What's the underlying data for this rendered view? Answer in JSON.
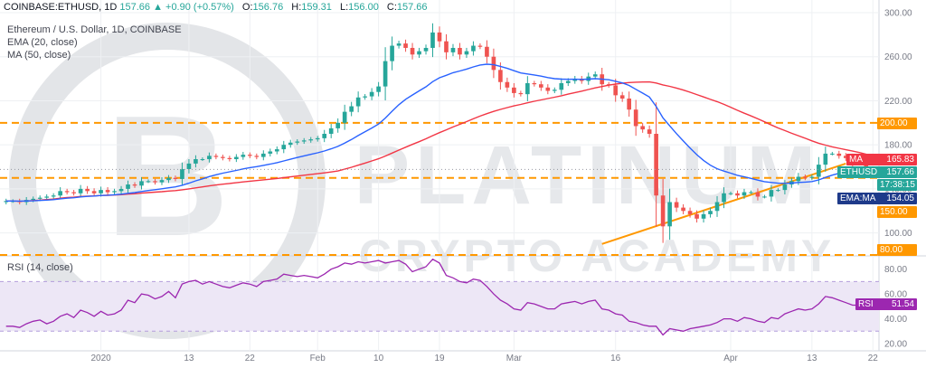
{
  "header": {
    "symbol": "COINBASE:ETHUSD, 1D",
    "o_label": "O:",
    "o": "156.76",
    "h_label": "H:",
    "h": "159.31",
    "l_label": "L:",
    "l": "156.00",
    "c_label": "C:",
    "c": "157.66",
    "change": "157.66 ▲ +0.90 (+0.57%)",
    "title": "Ethereum / U.S. Dollar, 1D, COINBASE",
    "ema_label": "EMA (20, close)",
    "ma_label": "MA (50, close)",
    "rsi_label": "RSI (14, close)"
  },
  "watermark": {
    "line1": "PLATINUM",
    "line2": "CRYPTO ACADEMY",
    "logo_char": "B"
  },
  "badges": {
    "ma_name": "MA",
    "ma_value": "165.83",
    "eth_name": "ETHUSD",
    "eth_value": "157.66",
    "timer": "17:38:15",
    "emama_name": "EMA:MA",
    "emama_value": "154.05",
    "level_200": "200.00",
    "level_150": "150.00",
    "level_80": "80.00",
    "rsi_name": "RSI",
    "rsi_value": "51.54"
  },
  "colors": {
    "up": "#26a69a",
    "down": "#ef5350",
    "ema": "#2962ff",
    "ma": "#f23645",
    "support": "#ff9800",
    "rsi": "#9c27b0",
    "rsi_band": "#ede7f6",
    "grid": "#eef0f3",
    "axis_text": "#787b86"
  },
  "chart_data": {
    "type": "candlestick",
    "title": "Ethereum / U.S. Dollar, 1D, COINBASE",
    "price_axis": {
      "range": [
        80,
        300
      ],
      "ticks": [
        "300.00",
        "260.00",
        "220.00",
        "180.00",
        "140.00",
        "100.00"
      ]
    },
    "x_axis": {
      "ticks": [
        {
          "label": "2020",
          "index": 14
        },
        {
          "label": "13",
          "index": 27
        },
        {
          "label": "22",
          "index": 36
        },
        {
          "label": "Feb",
          "index": 46
        },
        {
          "label": "10",
          "index": 55
        },
        {
          "label": "19",
          "index": 64
        },
        {
          "label": "Mar",
          "index": 75
        },
        {
          "label": "16",
          "index": 90
        },
        {
          "label": "Apr",
          "index": 107
        },
        {
          "label": "13",
          "index": 119
        },
        {
          "label": "22",
          "index": 128
        }
      ]
    },
    "horizontal_levels": [
      {
        "value": 200,
        "label": "200.00",
        "style": "dashed"
      },
      {
        "value": 150,
        "label": "150.00",
        "style": "dashed"
      },
      {
        "value": 80,
        "label": "80.00",
        "style": "dashed"
      }
    ],
    "trendline": {
      "from": {
        "index": 88,
        "value": 90
      },
      "to": {
        "index": 124,
        "value": 163
      }
    },
    "closes": [
      129,
      129,
      128,
      130,
      131,
      132,
      133,
      134,
      138,
      137,
      136,
      140,
      138,
      136,
      139,
      137,
      138,
      140,
      144,
      143,
      147,
      147,
      146,
      148,
      150,
      149,
      158,
      163,
      167,
      167,
      170,
      169,
      168,
      167,
      169,
      171,
      170,
      169,
      172,
      174,
      176,
      180,
      182,
      183,
      184,
      185,
      186,
      190,
      195,
      200,
      210,
      215,
      223,
      224,
      228,
      233,
      256,
      270,
      272,
      268,
      262,
      265,
      268,
      282,
      274,
      264,
      268,
      262,
      265,
      270,
      269,
      260,
      248,
      237,
      232,
      227,
      226,
      236,
      235,
      232,
      229,
      230,
      236,
      238,
      240,
      238,
      242,
      244,
      235,
      234,
      225,
      222,
      212,
      197,
      194,
      190,
      134,
      106,
      128,
      123,
      120,
      117,
      113,
      117,
      120,
      128,
      136,
      136,
      134,
      137,
      137,
      133,
      133,
      139,
      139,
      144,
      147,
      151,
      150,
      151,
      162,
      172,
      172,
      170,
      168,
      163,
      163,
      158,
      157.66
    ],
    "series": [
      {
        "name": "EMA (20, close)",
        "type": "line"
      },
      {
        "name": "MA (50, close)",
        "type": "line"
      }
    ],
    "rsi": {
      "name": "RSI (14, close)",
      "range": [
        20,
        90
      ],
      "band": [
        30,
        70
      ],
      "ticks": [
        "80.00",
        "60.00",
        "40.00",
        "20.00"
      ],
      "values": [
        34,
        34,
        33,
        36,
        38,
        39,
        36,
        38,
        42,
        44,
        41,
        47,
        45,
        42,
        46,
        43,
        44,
        47,
        55,
        53,
        60,
        59,
        56,
        58,
        62,
        57,
        68,
        70,
        71,
        68,
        70,
        68,
        66,
        65,
        67,
        69,
        68,
        66,
        70,
        71,
        72,
        76,
        75,
        74,
        75,
        74,
        73,
        76,
        80,
        82,
        85,
        84,
        86,
        85,
        86,
        87,
        85,
        86,
        87,
        84,
        78,
        80,
        82,
        88,
        85,
        75,
        73,
        70,
        69,
        72,
        71,
        66,
        60,
        55,
        52,
        48,
        47,
        53,
        52,
        50,
        48,
        48,
        52,
        53,
        54,
        52,
        54,
        55,
        48,
        47,
        44,
        43,
        38,
        37,
        35,
        34,
        34,
        27,
        32,
        31,
        30,
        32,
        33,
        34,
        35,
        37,
        40,
        40,
        38,
        41,
        40,
        38,
        37,
        41,
        40,
        44,
        46,
        48,
        47,
        48,
        52,
        58,
        57,
        55,
        53,
        51,
        51,
        51.54
      ]
    }
  }
}
